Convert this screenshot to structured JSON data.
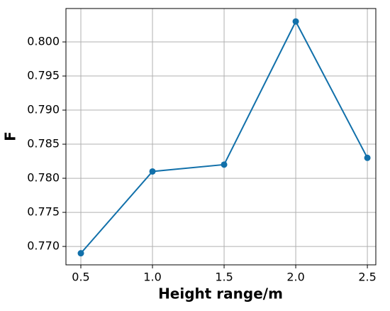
{
  "chart_data": {
    "type": "line",
    "xlabel": "Height range/m",
    "ylabel": "F",
    "x": [
      0.5,
      1.0,
      1.5,
      2.0,
      2.5
    ],
    "series": [
      {
        "name": "F",
        "color": "#1170aa",
        "values": [
          0.769,
          0.781,
          0.782,
          0.803,
          0.783
        ]
      }
    ],
    "xlim": [
      0.396,
      2.559
    ],
    "xticks": [
      0.5,
      {
        "value": 1.0,
        "label": "1.0"
      },
      1.5,
      {
        "value": 2.0,
        "label": "2.0"
      },
      2.5
    ],
    "ylim": [
      0.7673,
      0.8049
    ],
    "yticks": [
      {
        "value": 0.77,
        "label": "0.770"
      },
      {
        "value": 0.775,
        "label": "0.775"
      },
      {
        "value": 0.78,
        "label": "0.780"
      },
      {
        "value": 0.785,
        "label": "0.785"
      },
      {
        "value": 0.79,
        "label": "0.790"
      },
      {
        "value": 0.795,
        "label": "0.795"
      },
      {
        "value": 0.8,
        "label": "0.800"
      }
    ],
    "grid": true
  }
}
